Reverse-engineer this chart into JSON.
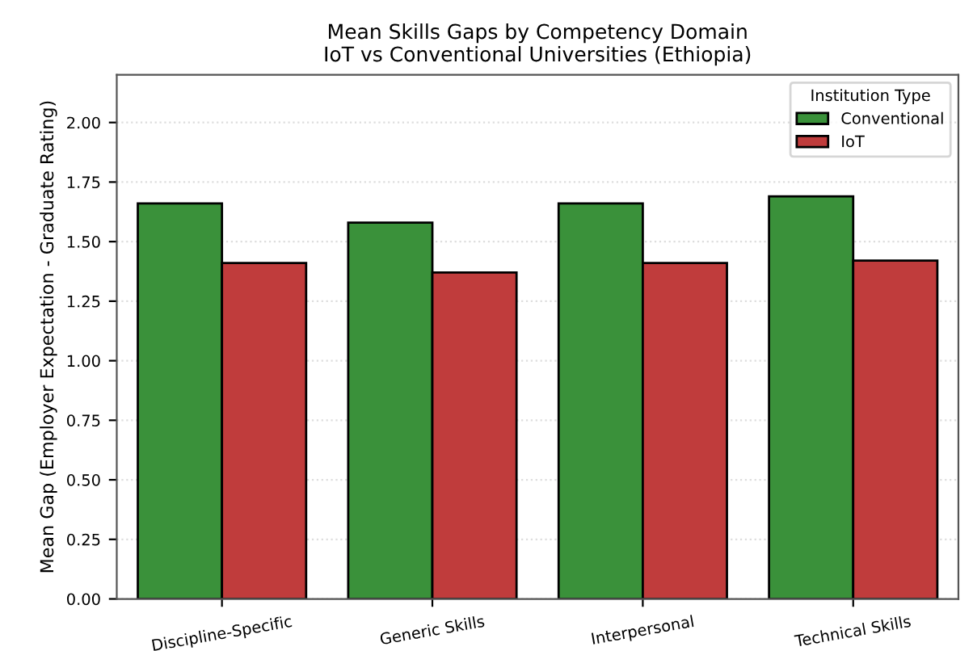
{
  "chart_data": {
    "type": "bar",
    "title": "Mean Skills Gaps by Competency Domain\nIoT vs Conventional Universities (Ethiopia)",
    "ylabel": "Mean Gap (Employer Expectation - Graduate Rating)",
    "legend_title": "Institution Type",
    "categories": [
      "Discipline-Specific",
      "Generic Skills",
      "Interpersonal",
      "Technical Skills"
    ],
    "series": [
      {
        "name": "Conventional",
        "color": "#3a913a",
        "values": [
          1.66,
          1.58,
          1.66,
          1.69
        ]
      },
      {
        "name": "IoT",
        "color": "#c03c3c",
        "values": [
          1.41,
          1.37,
          1.41,
          1.42
        ]
      }
    ],
    "ylim": [
      0,
      2.2
    ],
    "yticks": [
      {
        "value": 0,
        "label": "0.00"
      },
      0.25,
      {
        "value": 0.5,
        "label": "0.50"
      },
      0.75,
      {
        "value": 1,
        "label": "1.00"
      },
      1.25,
      {
        "value": 1.5,
        "label": "1.50"
      },
      1.75,
      {
        "value": 2,
        "label": "2.00"
      }
    ],
    "grid": "y",
    "legend": "top right"
  }
}
